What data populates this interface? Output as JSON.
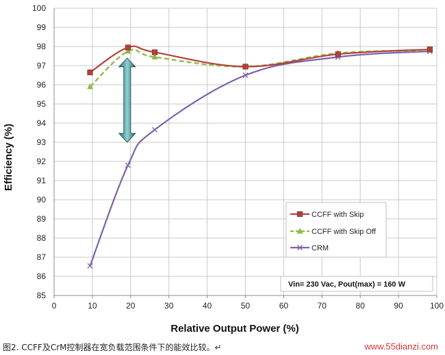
{
  "chart_data": {
    "type": "line",
    "xlabel": "Relative Output Power (%)",
    "ylabel": "Efficiency (%)",
    "xlim": [
      0,
      100
    ],
    "ylim": [
      85,
      100
    ],
    "xticks": [
      0,
      10,
      20,
      30,
      40,
      50,
      60,
      70,
      80,
      90,
      100
    ],
    "yticks": [
      85,
      86,
      87,
      88,
      89,
      90,
      91,
      92,
      93,
      94,
      95,
      96,
      97,
      98,
      99,
      100
    ],
    "grid": true,
    "legend_position": "bottom-right",
    "series": [
      {
        "name": "CCFF with Skip",
        "color": "#b5403a",
        "marker": "square",
        "style": "solid",
        "x": [
          9.4,
          19.3,
          26.3,
          50,
          74.2,
          98.2
        ],
        "y": [
          96.65,
          97.95,
          97.7,
          96.95,
          97.6,
          97.85
        ]
      },
      {
        "name": "CCFF with Skip Off",
        "color": "#8dbb4a",
        "marker": "triangle",
        "style": "dashed",
        "x": [
          9.4,
          19.3,
          26.3,
          50,
          74.2,
          98.2
        ],
        "y": [
          95.9,
          97.75,
          97.45,
          96.95,
          97.65,
          97.8
        ]
      },
      {
        "name": "CRM",
        "color": "#7d62a8",
        "marker": "x",
        "style": "solid",
        "x": [
          9.4,
          19.3,
          26.3,
          50,
          74.2,
          98.2
        ],
        "y": [
          86.55,
          91.8,
          93.65,
          96.5,
          97.45,
          97.75
        ]
      }
    ],
    "annotation": "Vin= 230 Vac, Pout(max) = 160 W",
    "arrow": {
      "x": 20,
      "y_from": 97.4,
      "y_to": 93.0,
      "color": "#3e8a8c"
    }
  },
  "caption": "图2. CCFF及CrM控制器在宽负载范围条件下的能效比较。↵",
  "watermark": "www.55dianzi.com"
}
